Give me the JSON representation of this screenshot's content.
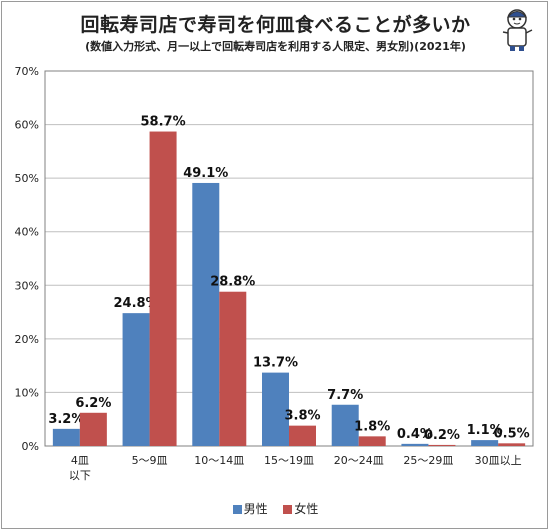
{
  "title": "回転寿司店で寿司を何皿食べることが多いか",
  "subtitle": "(数値入力形式、月一以上で回転寿司店を利用する人限定、男女別)(2021年)",
  "chart_data": {
    "type": "bar",
    "categories": [
      "4皿\n以下",
      "5〜9皿",
      "10〜14皿",
      "15〜19皿",
      "20〜24皿",
      "25〜29皿",
      "30皿以上"
    ],
    "series": [
      {
        "name": "男性",
        "color": "#4f81bd",
        "values": [
          3.2,
          24.8,
          49.1,
          13.7,
          7.7,
          0.4,
          1.1
        ],
        "labels": [
          "3.2%",
          "24.8%",
          "49.1%",
          "13.7%",
          "7.7%",
          "0.4%",
          "1.1%"
        ]
      },
      {
        "name": "女性",
        "color": "#c0504d",
        "values": [
          6.2,
          58.7,
          28.8,
          3.8,
          1.8,
          0.2,
          0.5
        ],
        "labels": [
          "6.2%",
          "58.7%",
          "28.8%",
          "3.8%",
          "1.8%",
          "0.2%",
          "0.5%"
        ]
      }
    ],
    "ylim": [
      0,
      70
    ],
    "yticks": [
      "0%",
      "10%",
      "20%",
      "30%",
      "40%",
      "50%",
      "60%",
      "70%"
    ],
    "grid": true,
    "legend_position": "bottom"
  }
}
